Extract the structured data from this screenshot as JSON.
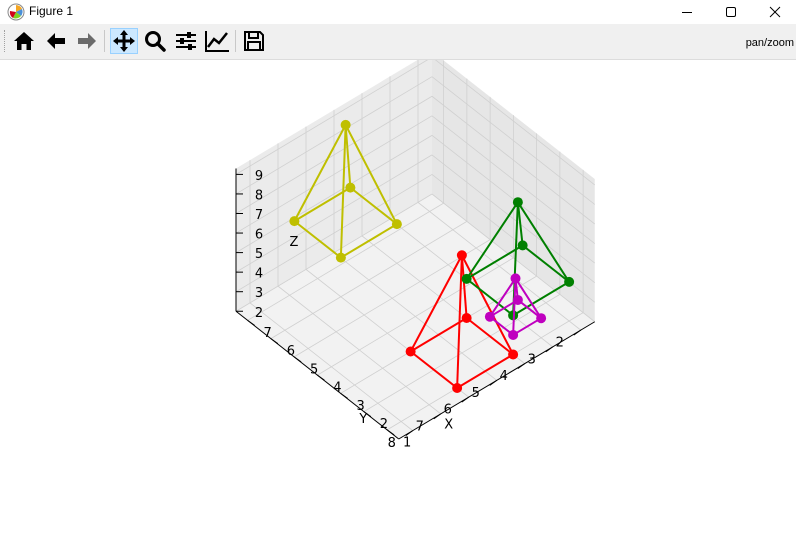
{
  "window": {
    "title": "Figure 1",
    "minimize_icon": "minimize-icon",
    "maximize_icon": "maximize-icon",
    "close_icon": "close-icon"
  },
  "toolbar": {
    "buttons": [
      {
        "name": "home",
        "icon": "home-icon"
      },
      {
        "name": "back",
        "icon": "arrow-left-icon"
      },
      {
        "name": "forward",
        "icon": "arrow-right-icon"
      },
      {
        "name": "pan",
        "icon": "move-icon",
        "active": true
      },
      {
        "name": "zoom",
        "icon": "magnifier-icon"
      },
      {
        "name": "configure-subplots",
        "icon": "sliders-icon"
      },
      {
        "name": "edit-axis",
        "icon": "line-chart-icon"
      },
      {
        "name": "save",
        "icon": "floppy-icon"
      }
    ],
    "mode_text": "pan/zoom"
  },
  "chart_data": {
    "type": "3d-wireframe-pyramids",
    "title": "",
    "xlabel": "X",
    "ylabel": "Y",
    "zlabel": "Z",
    "x_ticks": [
      "2",
      "3",
      "4",
      "5",
      "6",
      "7",
      "8"
    ],
    "y_ticks": [
      "1",
      "2",
      "3",
      "4",
      "5",
      "6",
      "7"
    ],
    "z_ticks": [
      "2",
      "3",
      "4",
      "5",
      "6",
      "7",
      "8",
      "9"
    ],
    "xlim": [
      1.5,
      8.5
    ],
    "ylim": [
      0.5,
      7.5
    ],
    "zlim": [
      2,
      9.3
    ],
    "grid": true,
    "pyramids": [
      {
        "color": "#ff0000",
        "base": [
          [
            4,
            3,
            2
          ],
          [
            6,
            3,
            2
          ],
          [
            6,
            1,
            2
          ],
          [
            4,
            1,
            2
          ]
        ],
        "apex": [
          5,
          2,
          7
        ]
      },
      {
        "color": "#008000",
        "base": [
          [
            2,
            1,
            4
          ],
          [
            2,
            3,
            4
          ],
          [
            4,
            3,
            4
          ],
          [
            4,
            1,
            4
          ]
        ],
        "apex": [
          3,
          2,
          8
        ]
      },
      {
        "color": "#bfbf00",
        "base": [
          [
            4,
            6,
            4
          ],
          [
            4,
            8,
            4
          ],
          [
            6,
            8,
            4
          ],
          [
            6,
            6,
            4
          ]
        ],
        "apex": [
          5,
          7,
          9
        ]
      },
      {
        "color": "#bf00bf",
        "base": [
          [
            3,
            1,
            3
          ],
          [
            3,
            2,
            3
          ],
          [
            4,
            2,
            3
          ],
          [
            4,
            1,
            3
          ]
        ],
        "apex": [
          3.5,
          1.5,
          5
        ]
      }
    ]
  }
}
